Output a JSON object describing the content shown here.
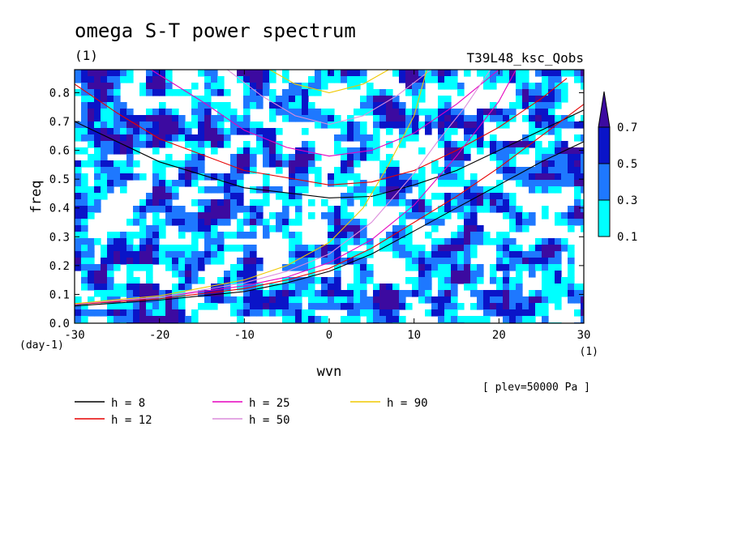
{
  "chart_data": {
    "type": "heatmap",
    "title": "omega S-T power spectrum",
    "subtitle": "(1)",
    "experiment": "T39L48_ksc_Qobs",
    "xlabel": "wvn",
    "xunit": "(1)",
    "ylabel": "freq",
    "yunit": "(day-1)",
    "xlim": [
      -30,
      30
    ],
    "ylim": [
      0.0,
      0.88
    ],
    "x_ticks": [
      -30,
      -20,
      -10,
      0,
      10,
      20,
      30
    ],
    "x_tick_labels": [
      "-30",
      "-20",
      "-10",
      "0",
      "10",
      "20",
      "30"
    ],
    "y_ticks": [
      0.0,
      0.1,
      0.2,
      0.3,
      0.4,
      0.5,
      0.6,
      0.7,
      0.8
    ],
    "y_tick_labels": [
      "0.0",
      "0.1",
      "0.2",
      "0.3",
      "0.4",
      "0.5",
      "0.6",
      "0.7",
      "0.8"
    ],
    "annotation": "[ plev=50000 Pa ]",
    "colorbar": {
      "levels": [
        0.1,
        0.3,
        0.5,
        0.7
      ],
      "level_labels": [
        "0.1",
        "0.3",
        "0.5",
        "0.7"
      ],
      "colors": [
        "#00ffff",
        "#1e78ff",
        "#0a14c8",
        "#3c0aa0"
      ]
    },
    "curve_legend": [
      {
        "label": "h =  8",
        "h": 8,
        "color": "#000000"
      },
      {
        "label": "h = 12",
        "h": 12,
        "color": "#e60000"
      },
      {
        "label": "h = 25",
        "h": 25,
        "color": "#e600be"
      },
      {
        "label": "h = 50",
        "h": 50,
        "color": "#dc8cdc"
      },
      {
        "label": "h = 90",
        "h": 90,
        "color": "#f0c800"
      }
    ],
    "curves": [
      {
        "name": "h8-gravity-lower",
        "color": "#000000",
        "points": [
          [
            -30,
            0.06
          ],
          [
            -20,
            0.08
          ],
          [
            -10,
            0.11
          ],
          [
            -5,
            0.14
          ],
          [
            0,
            0.18
          ],
          [
            5,
            0.24
          ],
          [
            10,
            0.32
          ],
          [
            15,
            0.4
          ],
          [
            20,
            0.48
          ],
          [
            25,
            0.56
          ],
          [
            30,
            0.63
          ]
        ]
      },
      {
        "name": "h8-gravity-upper",
        "color": "#000000",
        "points": [
          [
            -30,
            0.7
          ],
          [
            -20,
            0.56
          ],
          [
            -10,
            0.47
          ],
          [
            0,
            0.435
          ],
          [
            5,
            0.44
          ],
          [
            10,
            0.48
          ],
          [
            15,
            0.53
          ],
          [
            20,
            0.6
          ],
          [
            25,
            0.67
          ],
          [
            30,
            0.74
          ]
        ]
      },
      {
        "name": "h12-kelvin",
        "color": "#e60000",
        "points": [
          [
            -30,
            0.065
          ],
          [
            -20,
            0.085
          ],
          [
            -10,
            0.12
          ],
          [
            -5,
            0.15
          ],
          [
            0,
            0.19
          ],
          [
            5,
            0.26
          ],
          [
            10,
            0.35
          ],
          [
            15,
            0.44
          ],
          [
            20,
            0.54
          ],
          [
            25,
            0.65
          ],
          [
            30,
            0.76
          ]
        ]
      },
      {
        "name": "h12-gravity",
        "color": "#e60000",
        "points": [
          [
            -30,
            0.83
          ],
          [
            -25,
            0.73
          ],
          [
            -20,
            0.64
          ],
          [
            -10,
            0.53
          ],
          [
            0,
            0.48
          ],
          [
            5,
            0.49
          ],
          [
            10,
            0.53
          ],
          [
            15,
            0.6
          ],
          [
            20,
            0.68
          ],
          [
            25,
            0.78
          ],
          [
            28,
            0.85
          ]
        ]
      },
      {
        "name": "h25-kelvin",
        "color": "#e600be",
        "points": [
          [
            -30,
            0.066
          ],
          [
            -20,
            0.09
          ],
          [
            -10,
            0.13
          ],
          [
            -5,
            0.16
          ],
          [
            0,
            0.21
          ],
          [
            5,
            0.29
          ],
          [
            10,
            0.41
          ],
          [
            15,
            0.58
          ],
          [
            20,
            0.77
          ],
          [
            22,
            0.88
          ]
        ]
      },
      {
        "name": "h25-gravity",
        "color": "#e600be",
        "points": [
          [
            -21,
            0.88
          ],
          [
            -15,
            0.77
          ],
          [
            -10,
            0.67
          ],
          [
            -5,
            0.61
          ],
          [
            0,
            0.58
          ],
          [
            5,
            0.6
          ],
          [
            10,
            0.66
          ],
          [
            15,
            0.76
          ],
          [
            20,
            0.88
          ]
        ]
      },
      {
        "name": "h50-kelvin",
        "color": "#dc8cdc",
        "points": [
          [
            -30,
            0.067
          ],
          [
            -20,
            0.09
          ],
          [
            -10,
            0.14
          ],
          [
            -5,
            0.18
          ],
          [
            0,
            0.24
          ],
          [
            5,
            0.35
          ],
          [
            10,
            0.52
          ],
          [
            13,
            0.64
          ],
          [
            16,
            0.75
          ],
          [
            19,
            0.88
          ]
        ]
      },
      {
        "name": "h50-gravity",
        "color": "#dc8cdc",
        "points": [
          [
            -12,
            0.88
          ],
          [
            -8,
            0.79
          ],
          [
            -4,
            0.72
          ],
          [
            0,
            0.69
          ],
          [
            4,
            0.72
          ],
          [
            8,
            0.79
          ],
          [
            12,
            0.88
          ]
        ]
      },
      {
        "name": "h90-kelvin",
        "color": "#f0c800",
        "points": [
          [
            -30,
            0.068
          ],
          [
            -20,
            0.095
          ],
          [
            -10,
            0.15
          ],
          [
            -5,
            0.2
          ],
          [
            0,
            0.28
          ],
          [
            4,
            0.4
          ],
          [
            7,
            0.55
          ],
          [
            10,
            0.72
          ],
          [
            11.5,
            0.88
          ]
        ]
      },
      {
        "name": "h90-gravity",
        "color": "#f0c800",
        "points": [
          [
            -7,
            0.88
          ],
          [
            -4,
            0.83
          ],
          [
            0,
            0.8
          ],
          [
            4,
            0.83
          ],
          [
            7,
            0.88
          ]
        ]
      }
    ]
  }
}
